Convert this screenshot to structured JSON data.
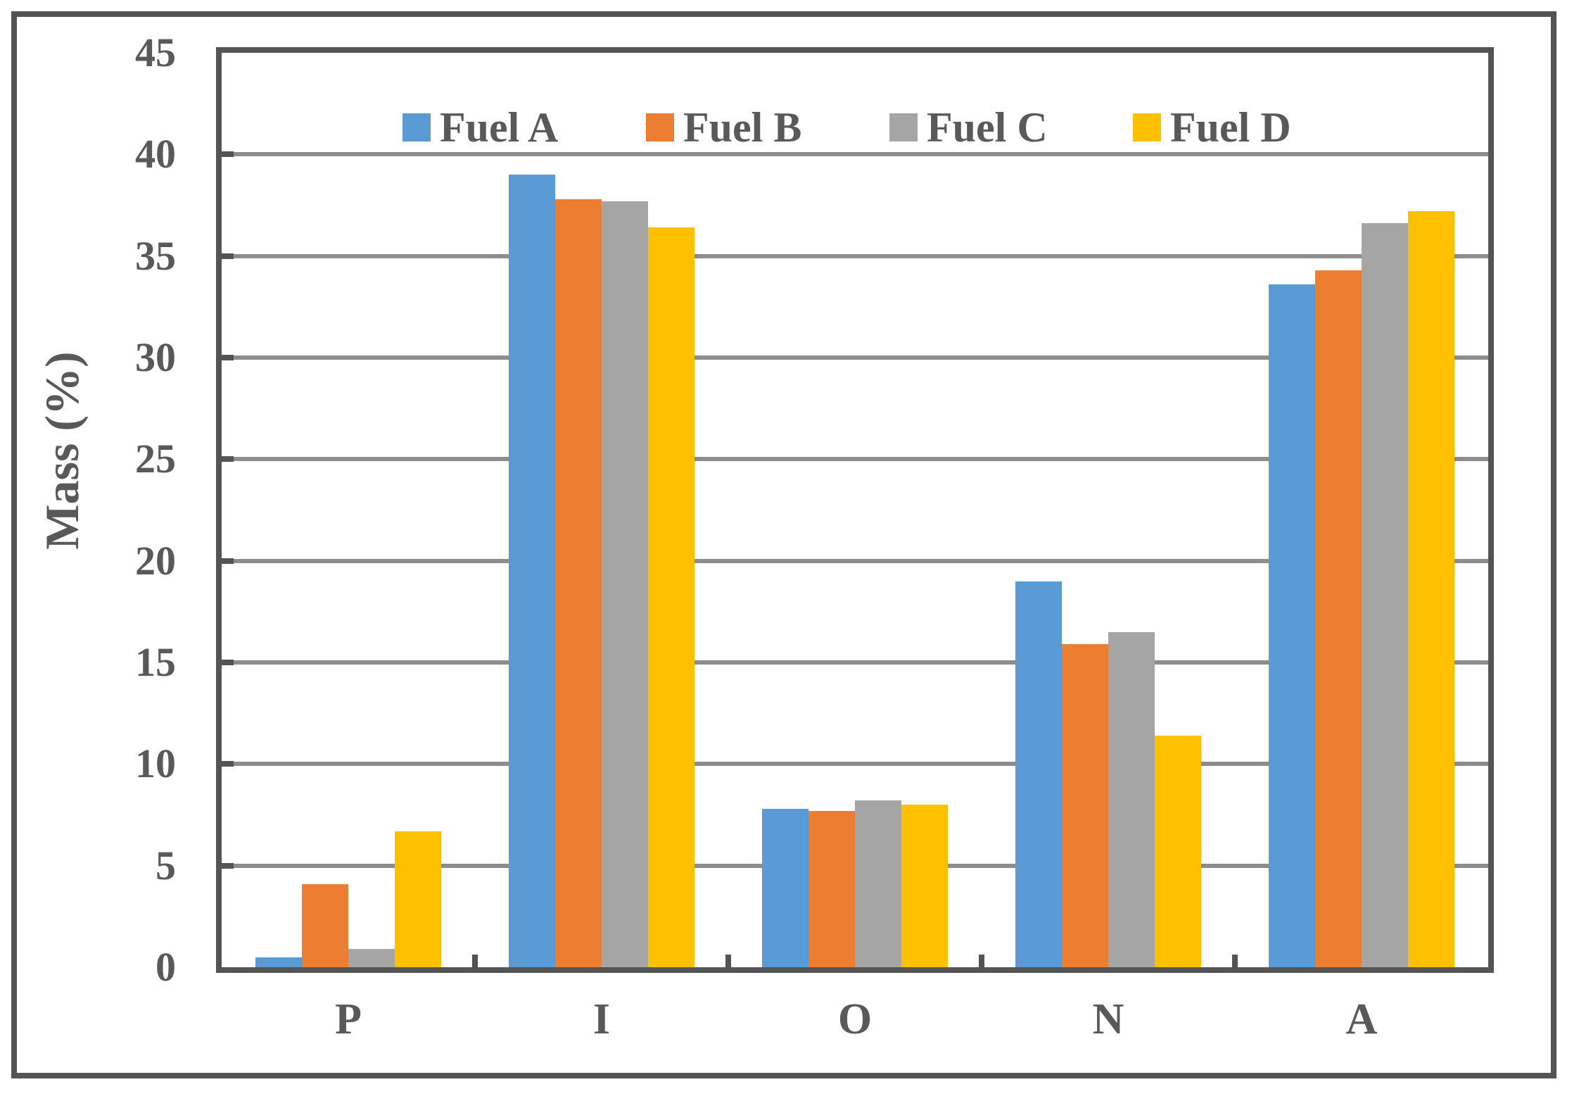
{
  "figure": {
    "background": "#FFFFFF",
    "outer_border_color": "#545454",
    "plot_border_color": "#545454",
    "gridline_color": "#8C8C8C",
    "text_color": "#595959"
  },
  "chart_data": {
    "type": "bar",
    "title": "",
    "xlabel": "",
    "ylabel": "Mass (%)",
    "categories": [
      "P",
      "I",
      "O",
      "N",
      "A"
    ],
    "series": [
      {
        "name": "Fuel A",
        "color": "#5B9BD5",
        "values": [
          0.5,
          39.0,
          7.8,
          19.0,
          33.6
        ]
      },
      {
        "name": "Fuel B",
        "color": "#ED7D31",
        "values": [
          4.1,
          37.8,
          7.7,
          15.9,
          34.3
        ]
      },
      {
        "name": "Fuel C",
        "color": "#A5A5A5",
        "values": [
          0.9,
          37.7,
          8.2,
          16.5,
          36.6
        ]
      },
      {
        "name": "Fuel D",
        "color": "#FFC000",
        "values": [
          6.7,
          36.4,
          8.0,
          11.4,
          37.2
        ]
      }
    ],
    "ylim": [
      0,
      45
    ],
    "yticks": [
      0,
      5,
      10,
      15,
      20,
      25,
      30,
      35,
      40,
      45
    ],
    "grid": true,
    "legend_position": "top-center"
  }
}
